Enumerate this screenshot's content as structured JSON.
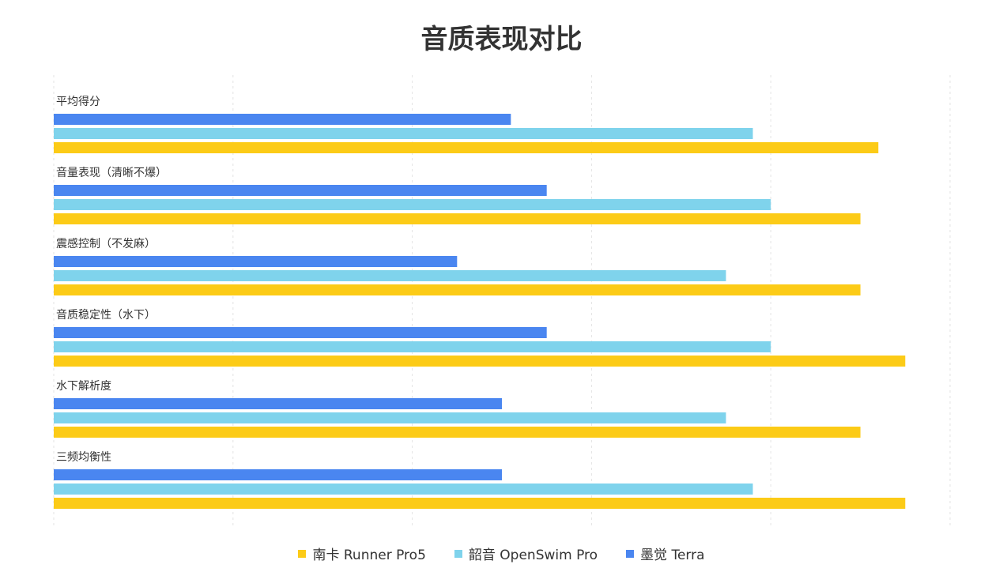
{
  "chart_data": {
    "type": "bar",
    "orientation": "horizontal",
    "title": "音质表现对比",
    "categories": [
      "平均得分",
      "音量表现（清晰不爆）",
      "震感控制（不发麻）",
      "音质稳定性（水下）",
      "水下解析度",
      "三频均衡性"
    ],
    "series": [
      {
        "name": "墨觉 Terra",
        "color": "#4a86f0",
        "values": [
          5.1,
          5.5,
          4.5,
          5.5,
          5.0,
          5.0
        ]
      },
      {
        "name": "韶音 OpenSwim Pro",
        "color": "#7fd3ec",
        "values": [
          7.8,
          8.0,
          7.5,
          8.0,
          7.5,
          7.8
        ]
      },
      {
        "name": "南卡 Runner Pro5",
        "color": "#fccb17",
        "values": [
          9.2,
          9.0,
          9.0,
          9.5,
          9.0,
          9.5
        ]
      }
    ],
    "xlim": [
      0,
      10
    ],
    "grid": true,
    "legend_position": "bottom"
  },
  "legend_order": [
    2,
    1,
    0
  ]
}
